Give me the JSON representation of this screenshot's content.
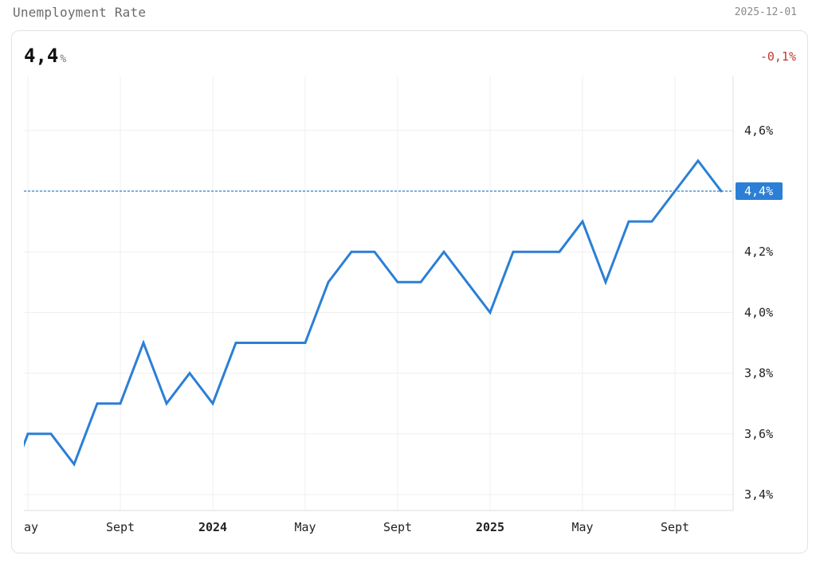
{
  "header": {
    "title": "Unemployment Rate",
    "date": "2025-12-01"
  },
  "summary": {
    "value": "4,4",
    "unit": "%",
    "change": "-0,1%",
    "current_tag": "4,4%"
  },
  "colors": {
    "line": "#2b7fd6",
    "current_tag_bg": "#2b7fd6",
    "negative_change": "#c0392b",
    "grid": "#efefef"
  },
  "chart_data": {
    "type": "line",
    "title": "Unemployment Rate",
    "xlabel": "",
    "ylabel": "",
    "x_first": "2023-04",
    "x_last": "2025-11",
    "x_axis_range": [
      "2023-05",
      "2025-12"
    ],
    "ylim": [
      3.35,
      4.8
    ],
    "grid": true,
    "series": [
      {
        "values": [
          3.4,
          3.6,
          3.6,
          3.5,
          3.7,
          3.7,
          3.9,
          3.7,
          3.8,
          3.7,
          3.9,
          3.9,
          3.9,
          3.9,
          4.1,
          4.2,
          4.2,
          4.1,
          4.1,
          4.2,
          4.1,
          4.0,
          4.2,
          4.2,
          4.2,
          4.3,
          4.1,
          4.3,
          4.3,
          4.4,
          4.5,
          4.4
        ]
      }
    ],
    "current_value": 4.4,
    "y_ticks": [
      {
        "value": 3.4,
        "label": "3,4%"
      },
      {
        "value": 3.6,
        "label": "3,6%"
      },
      {
        "value": 3.8,
        "label": "3,8%"
      },
      {
        "value": 4.0,
        "label": "4,0%"
      },
      {
        "value": 4.2,
        "label": "4,2%"
      },
      {
        "value": 4.4,
        "label": "4,4%"
      },
      {
        "value": 4.6,
        "label": "4,6%"
      }
    ],
    "x_ticks": [
      {
        "month": "2023-05",
        "label": "ay",
        "bold": false
      },
      {
        "month": "2023-09",
        "label": "Sept",
        "bold": false
      },
      {
        "month": "2024-01",
        "label": "2024",
        "bold": true
      },
      {
        "month": "2024-05",
        "label": "May",
        "bold": false
      },
      {
        "month": "2024-09",
        "label": "Sept",
        "bold": false
      },
      {
        "month": "2025-01",
        "label": "2025",
        "bold": true
      },
      {
        "month": "2025-05",
        "label": "May",
        "bold": false
      },
      {
        "month": "2025-09",
        "label": "Sept",
        "bold": false
      }
    ]
  }
}
